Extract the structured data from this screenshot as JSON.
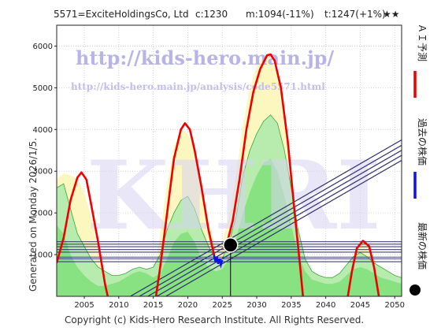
{
  "header": {
    "code_name": "5571=ExciteHoldingsCo,  Ltd",
    "current": "c:1230",
    "min": "m:1094(-11%)",
    "target": "t:1247(+1%)",
    "stars": "★★"
  },
  "side_text": "Generated on Monday 2026/1/5.",
  "watermark": {
    "url_main": "http://kids-hero.main.jp/",
    "url_sub": "http://kids-hero.main.jp/analysis/code5571.html",
    "big": "KHRI"
  },
  "footer": "Copyright (c) Kids-Hero Research Institute. All Rights Reserved.",
  "legend": [
    {
      "label": "ＡＩ予測",
      "color": "#ee0000",
      "marker": "line"
    },
    {
      "label": "過去の株価",
      "color": "#1010ee",
      "marker": "line"
    },
    {
      "label": "最新の株価",
      "color": "#000000",
      "marker": "dot"
    }
  ],
  "chart_data": {
    "type": "line",
    "xlim": [
      2001,
      2051
    ],
    "ylim": [
      0,
      6500
    ],
    "x_ticks": [
      2005,
      2010,
      2015,
      2020,
      2025,
      2030,
      2035,
      2040,
      2045,
      2050
    ],
    "y_ticks": [
      1000,
      2000,
      3000,
      4000,
      5000,
      6000
    ],
    "grid": true,
    "ai_forecast": [
      {
        "segment": 1,
        "points": [
          [
            2001,
            800
          ],
          [
            2002,
            1400
          ],
          [
            2003,
            2300
          ],
          [
            2004,
            2850
          ],
          [
            2004.6,
            2970
          ],
          [
            2005.3,
            2800
          ],
          [
            2006,
            2200
          ],
          [
            2007,
            1300
          ],
          [
            2008,
            300
          ],
          [
            2008.4,
            0
          ]
        ]
      },
      {
        "segment": 2,
        "points": [
          [
            2015.4,
            0
          ],
          [
            2016,
            700
          ],
          [
            2017,
            2000
          ],
          [
            2018,
            3300
          ],
          [
            2019,
            4000
          ],
          [
            2019.6,
            4150
          ],
          [
            2020.3,
            4000
          ],
          [
            2021,
            3500
          ],
          [
            2022,
            2600
          ],
          [
            2023,
            1600
          ],
          [
            2023.8,
            1000
          ]
        ]
      },
      {
        "segment": 3,
        "points": [
          [
            2025.5,
            1150
          ],
          [
            2026.5,
            1800
          ],
          [
            2027.5,
            2800
          ],
          [
            2028.5,
            4000
          ],
          [
            2029.5,
            4900
          ],
          [
            2030.5,
            5450
          ],
          [
            2031.5,
            5780
          ],
          [
            2032,
            5800
          ],
          [
            2032.6,
            5650
          ],
          [
            2033.5,
            5000
          ],
          [
            2034.5,
            3700
          ],
          [
            2035.5,
            2000
          ],
          [
            2036.3,
            700
          ],
          [
            2036.7,
            0
          ]
        ]
      },
      {
        "segment": 4,
        "points": [
          [
            2043.2,
            0
          ],
          [
            2043.8,
            600
          ],
          [
            2044.5,
            1150
          ],
          [
            2045.4,
            1330
          ],
          [
            2046.3,
            1200
          ],
          [
            2047,
            700
          ],
          [
            2047.7,
            0
          ]
        ]
      }
    ],
    "past_price": [
      [
        2023.8,
        1000
      ],
      [
        2024.0,
        830
      ],
      [
        2024.2,
        950
      ],
      [
        2024.4,
        780
      ],
      [
        2024.6,
        900
      ],
      [
        2024.8,
        760
      ],
      [
        2025.0,
        870
      ]
    ],
    "latest_price": {
      "x": 2026.2,
      "y": 1230
    },
    "horizontal_levels": [
      1310,
      1250,
      1190,
      1120,
      1060,
      940,
      900,
      830
    ],
    "trend_lines": [
      {
        "from": [
          2008,
          -350
        ],
        "to": [
          2051,
          3750
        ]
      },
      {
        "from": [
          2009,
          -380
        ],
        "to": [
          2051,
          3620
        ]
      },
      {
        "from": [
          2010,
          -400
        ],
        "to": [
          2051,
          3500
        ]
      },
      {
        "from": [
          2011,
          -430
        ],
        "to": [
          2051,
          3380
        ]
      },
      {
        "from": [
          2012,
          -460
        ],
        "to": [
          2051,
          3260
        ]
      }
    ],
    "green_area_upper": [
      [
        2001,
        2600
      ],
      [
        2002,
        2700
      ],
      [
        2003,
        2100
      ],
      [
        2004,
        1500
      ],
      [
        2005,
        1200
      ],
      [
        2006,
        900
      ],
      [
        2007,
        700
      ],
      [
        2008,
        600
      ],
      [
        2009,
        500
      ],
      [
        2010,
        500
      ],
      [
        2011,
        550
      ],
      [
        2012,
        650
      ],
      [
        2013,
        700
      ],
      [
        2014,
        650
      ],
      [
        2015,
        700
      ],
      [
        2016,
        1000
      ],
      [
        2017,
        1600
      ],
      [
        2018,
        2000
      ],
      [
        2019,
        2300
      ],
      [
        2020,
        2400
      ],
      [
        2021,
        2100
      ],
      [
        2022,
        1600
      ],
      [
        2023,
        1200
      ],
      [
        2024,
        900
      ],
      [
        2025,
        900
      ],
      [
        2026,
        1300
      ],
      [
        2027,
        1900
      ],
      [
        2028,
        2900
      ],
      [
        2029,
        3500
      ],
      [
        2030,
        3900
      ],
      [
        2031,
        4200
      ],
      [
        2032,
        4350
      ],
      [
        2033,
        4150
      ],
      [
        2034,
        3500
      ],
      [
        2035,
        2600
      ],
      [
        2036,
        1600
      ],
      [
        2037,
        900
      ],
      [
        2038,
        600
      ],
      [
        2039,
        500
      ],
      [
        2040,
        450
      ],
      [
        2041,
        450
      ],
      [
        2042,
        550
      ],
      [
        2043,
        750
      ],
      [
        2044,
        950
      ],
      [
        2045,
        1050
      ],
      [
        2046,
        950
      ],
      [
        2047,
        800
      ],
      [
        2048,
        700
      ],
      [
        2049,
        600
      ],
      [
        2050,
        500
      ],
      [
        2051,
        450
      ]
    ],
    "green_area_lower": [
      [
        2001,
        1700
      ],
      [
        2002,
        1500
      ],
      [
        2003,
        1000
      ],
      [
        2004,
        700
      ],
      [
        2005,
        500
      ],
      [
        2006,
        350
      ],
      [
        2007,
        250
      ],
      [
        2008,
        250
      ],
      [
        2009,
        300
      ],
      [
        2010,
        350
      ],
      [
        2011,
        450
      ],
      [
        2012,
        550
      ],
      [
        2013,
        600
      ],
      [
        2014,
        550
      ],
      [
        2015,
        450
      ],
      [
        2016,
        550
      ],
      [
        2017,
        900
      ],
      [
        2018,
        1300
      ],
      [
        2019,
        1500
      ],
      [
        2020,
        1550
      ],
      [
        2021,
        1300
      ],
      [
        2022,
        900
      ],
      [
        2023,
        700
      ],
      [
        2024,
        600
      ],
      [
        2025,
        650
      ],
      [
        2026,
        900
      ],
      [
        2027,
        1400
      ],
      [
        2028,
        2000
      ],
      [
        2029,
        2500
      ],
      [
        2030,
        2900
      ],
      [
        2031,
        3200
      ],
      [
        2032,
        3300
      ],
      [
        2033,
        3000
      ],
      [
        2034,
        2400
      ],
      [
        2035,
        1700
      ],
      [
        2036,
        1000
      ],
      [
        2037,
        600
      ],
      [
        2038,
        400
      ],
      [
        2039,
        350
      ],
      [
        2040,
        300
      ],
      [
        2041,
        300
      ],
      [
        2042,
        350
      ],
      [
        2043,
        500
      ],
      [
        2044,
        650
      ],
      [
        2045,
        700
      ],
      [
        2046,
        650
      ],
      [
        2047,
        550
      ],
      [
        2048,
        450
      ],
      [
        2049,
        400
      ],
      [
        2050,
        350
      ],
      [
        2051,
        300
      ]
    ],
    "yellow_band_upper": [
      [
        2001,
        2800
      ],
      [
        2002,
        2950
      ],
      [
        2003,
        2900
      ],
      [
        2004,
        2800
      ],
      [
        2005,
        2500
      ],
      [
        2006,
        1900
      ],
      [
        2007,
        1100
      ],
      [
        2008,
        400
      ],
      [
        2009,
        300
      ],
      [
        2015,
        300
      ],
      [
        2016,
        1500
      ],
      [
        2017,
        2700
      ],
      [
        2018,
        3600
      ],
      [
        2019,
        4000
      ],
      [
        2020,
        3900
      ],
      [
        2021,
        3500
      ],
      [
        2022,
        2700
      ],
      [
        2023,
        1800
      ],
      [
        2024,
        1200
      ],
      [
        2025,
        1300
      ],
      [
        2026,
        1900
      ],
      [
        2027,
        2900
      ],
      [
        2028,
        4100
      ],
      [
        2029,
        5000
      ],
      [
        2030,
        5500
      ],
      [
        2031,
        5750
      ],
      [
        2032,
        5750
      ],
      [
        2033,
        5300
      ],
      [
        2034,
        4300
      ],
      [
        2035,
        2800
      ],
      [
        2036,
        1300
      ],
      [
        2037,
        500
      ],
      [
        2043,
        400
      ],
      [
        2044,
        1000
      ],
      [
        2045,
        1300
      ],
      [
        2046,
        1250
      ],
      [
        2047,
        900
      ],
      [
        2048,
        500
      ],
      [
        2051,
        400
      ]
    ]
  }
}
